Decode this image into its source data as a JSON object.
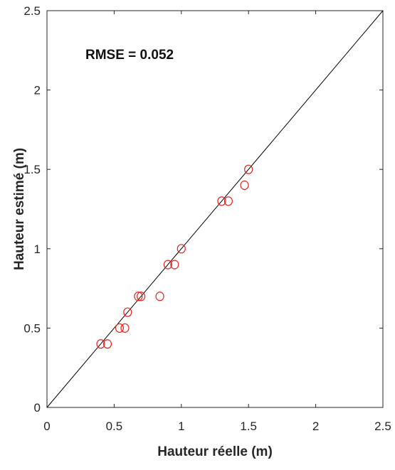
{
  "chart_data": {
    "type": "scatter",
    "xlabel": "Hauteur réelle (m)",
    "ylabel": "Hauteur estimé (m)",
    "xlim": [
      0,
      2.5
    ],
    "ylim": [
      0,
      2.5
    ],
    "x_ticks": [
      "0",
      "0.5",
      "1",
      "1.5",
      "2",
      "2.5"
    ],
    "y_ticks": [
      "0",
      "0.5",
      "1",
      "1.5",
      "2",
      "2.5"
    ],
    "grid": false,
    "annotation": "RMSE = 0.052",
    "reference_line": {
      "type": "identity",
      "from": [
        0,
        0
      ],
      "to": [
        2.5,
        2.5
      ],
      "color": "#000000"
    },
    "marker": {
      "shape": "open-circle",
      "color": "#e8251f"
    },
    "series": [
      {
        "points": [
          [
            0.4,
            0.4
          ],
          [
            0.45,
            0.4
          ],
          [
            0.54,
            0.5
          ],
          [
            0.58,
            0.5
          ],
          [
            0.6,
            0.6
          ],
          [
            0.68,
            0.7
          ],
          [
            0.7,
            0.7
          ],
          [
            0.84,
            0.7
          ],
          [
            0.9,
            0.9
          ],
          [
            0.95,
            0.9
          ],
          [
            1.0,
            1.0
          ],
          [
            1.3,
            1.3
          ],
          [
            1.35,
            1.3
          ],
          [
            1.47,
            1.4
          ],
          [
            1.5,
            1.5
          ]
        ]
      }
    ]
  }
}
